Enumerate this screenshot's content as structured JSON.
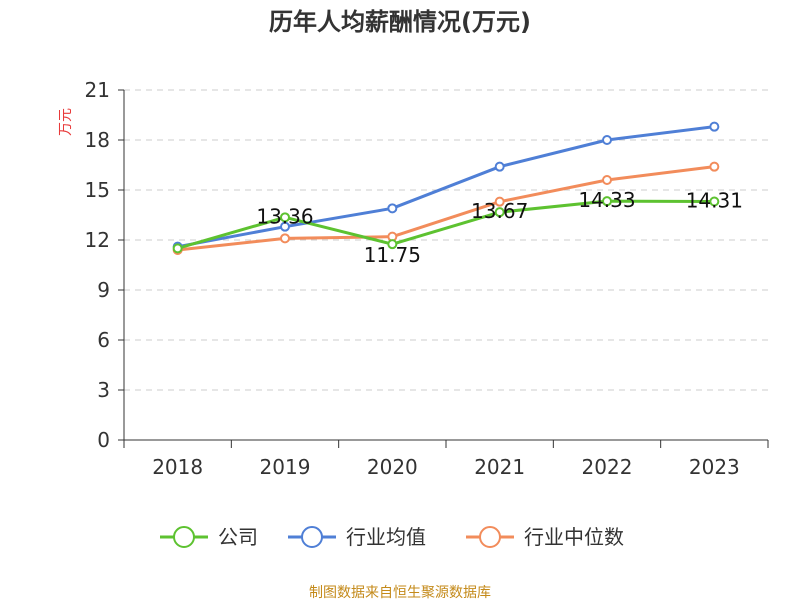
{
  "chart_data": {
    "type": "line",
    "title": "历年人均薪酬情况(万元)",
    "ylabel": "万元",
    "xlabel": "",
    "categories": [
      "2018",
      "2019",
      "2020",
      "2021",
      "2022",
      "2023"
    ],
    "ylim": [
      0,
      21
    ],
    "yticks": [
      0,
      3,
      6,
      9,
      12,
      15,
      18,
      21
    ],
    "grid": true,
    "legend_position": "bottom",
    "series": [
      {
        "name": "公司",
        "color": "#5dc230",
        "values": [
          11.5,
          13.36,
          11.75,
          13.67,
          14.33,
          14.31
        ],
        "data_labels": [
          "",
          "13.36",
          "11.75",
          "13.67",
          "14.33",
          "14.31"
        ]
      },
      {
        "name": "行业均值",
        "color": "#4f7fd6",
        "values": [
          11.6,
          12.8,
          13.9,
          16.4,
          18.0,
          18.8
        ]
      },
      {
        "name": "行业中位数",
        "color": "#f28c5b",
        "values": [
          11.4,
          12.1,
          12.2,
          14.3,
          15.6,
          16.4
        ]
      }
    ]
  },
  "source": "制图数据来自恒生聚源数据库"
}
